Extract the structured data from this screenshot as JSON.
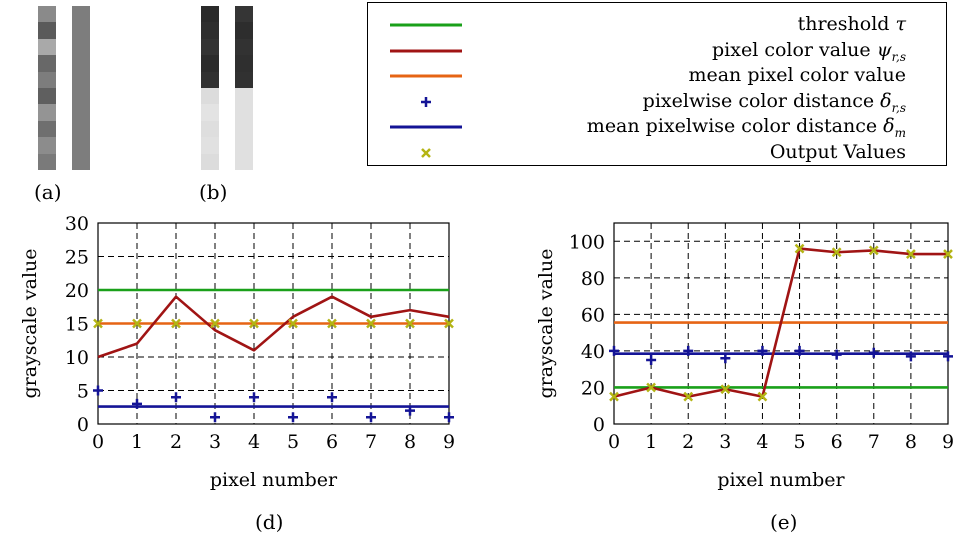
{
  "figure": {
    "caption_a": "(a)",
    "caption_b": "(b)",
    "caption_d": "(d)",
    "caption_e": "(e)"
  },
  "image_a": {
    "left_column": [
      "#8a8a8a",
      "#5a5a5a",
      "#a9a9a9",
      "#686868",
      "#7d7d7d",
      "#5f5f5f",
      "#949494",
      "#6f6f6f",
      "#8c8c8c",
      "#7a7a7a"
    ],
    "right_column": [
      "#7d7d7d",
      "#7d7d7d",
      "#7d7d7d",
      "#7d7d7d",
      "#7d7d7d",
      "#7d7d7d",
      "#7d7d7d",
      "#7d7d7d",
      "#7d7d7d",
      "#7d7d7d"
    ]
  },
  "image_b": {
    "left_column": [
      "#2a2a2a",
      "#2e2e2e",
      "#333333",
      "#2b2b2b",
      "#303030",
      "#dcdcdc",
      "#e3e3e3",
      "#dedede",
      "#e1e1e1",
      "#dcdcdc"
    ],
    "right_column": [
      "#353535",
      "#2d2d2d",
      "#323232",
      "#2f2f2f",
      "#313131",
      "#e0e0e0",
      "#e0e0e0",
      "#e0e0e0",
      "#e0e0e0",
      "#e0e0e0"
    ]
  },
  "legend": {
    "items": [
      {
        "label": "threshold τ",
        "label_main": "threshold ",
        "label_sym": "τ",
        "label_sub": "",
        "symbol": "line",
        "color": "#1aa01a"
      },
      {
        "label": "pixel color value ψr,s",
        "label_main": "pixel color value ",
        "label_sym": "ψ",
        "label_sub": "r,s",
        "symbol": "line",
        "color": "#a01414"
      },
      {
        "label": "mean pixel color value",
        "label_main": "mean pixel color value",
        "label_sym": "",
        "label_sub": "",
        "symbol": "line",
        "color": "#e66414"
      },
      {
        "label": "pixelwise color distance δr,s",
        "label_main": "pixelwise color distance ",
        "label_sym": "δ",
        "label_sub": "r,s",
        "symbol": "plus",
        "color": "#141496"
      },
      {
        "label": "mean pixelwise color distance δm",
        "label_main": "mean pixelwise color distance ",
        "label_sym": "δ",
        "label_sub": "m",
        "symbol": "line",
        "color": "#141496"
      },
      {
        "label": "Output Values",
        "label_main": "Output Values",
        "label_sym": "",
        "label_sub": "",
        "symbol": "cross",
        "color": "#b4b414"
      }
    ]
  },
  "colors": {
    "threshold": "#1aa01a",
    "pixel": "#a01414",
    "mean": "#e66414",
    "distance": "#141496",
    "output": "#b4b414"
  },
  "chart_data": [
    {
      "type": "line",
      "id": "d",
      "xlabel": "pixel number",
      "ylabel": "grayscale value",
      "x": [
        0,
        1,
        2,
        3,
        4,
        5,
        6,
        7,
        8,
        9
      ],
      "xlim": [
        0,
        9
      ],
      "ylim": [
        0,
        30
      ],
      "xticks": [
        0,
        1,
        2,
        3,
        4,
        5,
        6,
        7,
        8,
        9
      ],
      "yticks": [
        0,
        5,
        10,
        15,
        20,
        25,
        30
      ],
      "grid": true,
      "series": [
        {
          "key": "threshold",
          "values": [
            20,
            20,
            20,
            20,
            20,
            20,
            20,
            20,
            20,
            20
          ]
        },
        {
          "key": "pixel",
          "values": [
            10,
            12,
            19,
            14,
            11,
            16,
            19,
            16,
            17,
            16
          ]
        },
        {
          "key": "mean",
          "values": [
            15,
            15,
            15,
            15,
            15,
            15,
            15,
            15,
            15,
            15
          ]
        },
        {
          "key": "distance",
          "values": [
            5,
            3,
            4,
            1,
            4,
            1,
            4,
            1,
            2,
            1
          ]
        },
        {
          "key": "mean_distance",
          "values": [
            2.6,
            2.6,
            2.6,
            2.6,
            2.6,
            2.6,
            2.6,
            2.6,
            2.6,
            2.6
          ]
        },
        {
          "key": "output",
          "values": [
            15,
            15,
            15,
            15,
            15,
            15,
            15,
            15,
            15,
            15
          ]
        }
      ]
    },
    {
      "type": "line",
      "id": "e",
      "xlabel": "pixel number",
      "ylabel": "grayscale value",
      "x": [
        0,
        1,
        2,
        3,
        4,
        5,
        6,
        7,
        8,
        9
      ],
      "xlim": [
        0,
        9
      ],
      "ylim": [
        0,
        110
      ],
      "xticks": [
        0,
        1,
        2,
        3,
        4,
        5,
        6,
        7,
        8,
        9
      ],
      "yticks": [
        0,
        20,
        40,
        60,
        80,
        100
      ],
      "grid": true,
      "series": [
        {
          "key": "threshold",
          "values": [
            20,
            20,
            20,
            20,
            20,
            20,
            20,
            20,
            20,
            20
          ]
        },
        {
          "key": "pixel",
          "values": [
            15,
            20,
            15,
            19,
            15,
            96,
            94,
            95,
            93,
            93
          ]
        },
        {
          "key": "mean",
          "values": [
            55.5,
            55.5,
            55.5,
            55.5,
            55.5,
            55.5,
            55.5,
            55.5,
            55.5,
            55.5
          ]
        },
        {
          "key": "distance",
          "values": [
            40,
            35,
            40,
            36,
            40,
            40,
            38,
            39,
            37,
            37
          ]
        },
        {
          "key": "mean_distance",
          "values": [
            38.5,
            38.5,
            38.5,
            38.5,
            38.5,
            38.5,
            38.5,
            38.5,
            38.5,
            38.5
          ]
        },
        {
          "key": "output",
          "values": [
            15,
            20,
            15,
            19,
            15,
            96,
            94,
            95,
            93,
            93
          ]
        }
      ]
    }
  ]
}
